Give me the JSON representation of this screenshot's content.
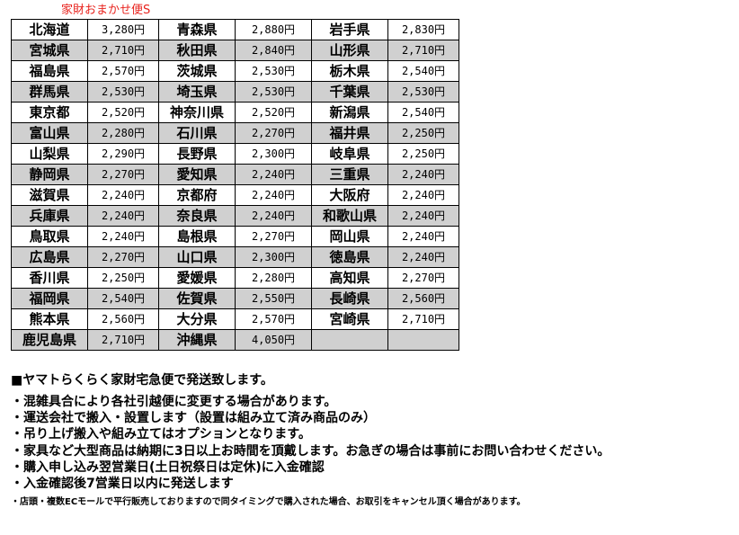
{
  "title": "家財おまかせ便S",
  "rows": [
    [
      [
        "北海道",
        "3,280円"
      ],
      [
        "青森県",
        "2,880円"
      ],
      [
        "岩手県",
        "2,830円"
      ]
    ],
    [
      [
        "宮城県",
        "2,710円"
      ],
      [
        "秋田県",
        "2,840円"
      ],
      [
        "山形県",
        "2,710円"
      ]
    ],
    [
      [
        "福島県",
        "2,570円"
      ],
      [
        "茨城県",
        "2,530円"
      ],
      [
        "栃木県",
        "2,540円"
      ]
    ],
    [
      [
        "群馬県",
        "2,530円"
      ],
      [
        "埼玉県",
        "2,530円"
      ],
      [
        "千葉県",
        "2,530円"
      ]
    ],
    [
      [
        "東京都",
        "2,520円"
      ],
      [
        "神奈川県",
        "2,520円"
      ],
      [
        "新潟県",
        "2,540円"
      ]
    ],
    [
      [
        "富山県",
        "2,280円"
      ],
      [
        "石川県",
        "2,270円"
      ],
      [
        "福井県",
        "2,250円"
      ]
    ],
    [
      [
        "山梨県",
        "2,290円"
      ],
      [
        "長野県",
        "2,300円"
      ],
      [
        "岐阜県",
        "2,250円"
      ]
    ],
    [
      [
        "静岡県",
        "2,270円"
      ],
      [
        "愛知県",
        "2,240円"
      ],
      [
        "三重県",
        "2,240円"
      ]
    ],
    [
      [
        "滋賀県",
        "2,240円"
      ],
      [
        "京都府",
        "2,240円"
      ],
      [
        "大阪府",
        "2,240円"
      ]
    ],
    [
      [
        "兵庫県",
        "2,240円"
      ],
      [
        "奈良県",
        "2,240円"
      ],
      [
        "和歌山県",
        "2,240円"
      ]
    ],
    [
      [
        "鳥取県",
        "2,240円"
      ],
      [
        "島根県",
        "2,270円"
      ],
      [
        "岡山県",
        "2,240円"
      ]
    ],
    [
      [
        "広島県",
        "2,270円"
      ],
      [
        "山口県",
        "2,300円"
      ],
      [
        "徳島県",
        "2,240円"
      ]
    ],
    [
      [
        "香川県",
        "2,250円"
      ],
      [
        "愛媛県",
        "2,280円"
      ],
      [
        "高知県",
        "2,270円"
      ]
    ],
    [
      [
        "福岡県",
        "2,540円"
      ],
      [
        "佐賀県",
        "2,550円"
      ],
      [
        "長崎県",
        "2,560円"
      ]
    ],
    [
      [
        "熊本県",
        "2,560円"
      ],
      [
        "大分県",
        "2,570円"
      ],
      [
        "宮崎県",
        "2,710円"
      ]
    ],
    [
      [
        "鹿児島県",
        "2,710円"
      ],
      [
        "沖縄県",
        "4,050円"
      ],
      [
        "",
        ""
      ]
    ]
  ],
  "notes": {
    "heading": "■ヤマトらくらく家財宅急便で発送致します。",
    "lines": [
      "・混雑具合により各社引越便に変更する場合があります。",
      "・運送会社で搬入・設置します（設置は組み立て済み商品のみ）",
      "・吊り上げ搬入や組み立てはオプションとなります。",
      "・家具など大型商品は納期に3日以上お時間を頂戴します。お急ぎの場合は事前にお問い合わせください。",
      "・購入申し込み翌営業日(土日祝祭日は定休)に入金確認",
      "・入金確認後7営業日以内に発送します"
    ],
    "small": "・店頭・複数ECモールで平行販売しておりますので同タイミングで購入された場合、お取引をキャンセル頂く場合があります。"
  },
  "colors": {
    "title": "#e8231d",
    "row_alt": "#d0d0d0"
  }
}
